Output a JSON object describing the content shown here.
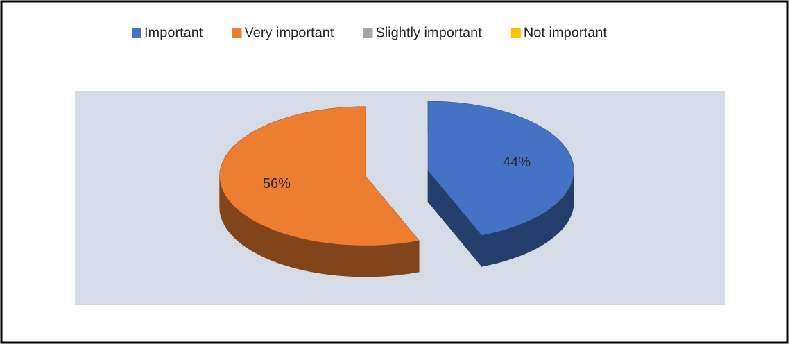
{
  "chart_data": {
    "type": "pie",
    "pie_3d": true,
    "exploded": true,
    "categories": [
      "Important",
      "Very important",
      "Slightly important",
      "Not important"
    ],
    "values": [
      44,
      56,
      0,
      0
    ],
    "value_labels": [
      "44%",
      "56%",
      null,
      null
    ],
    "colors": [
      "#4472c4",
      "#ed7d31",
      "#a5a5a5",
      "#ffc000"
    ],
    "legend": "top"
  }
}
